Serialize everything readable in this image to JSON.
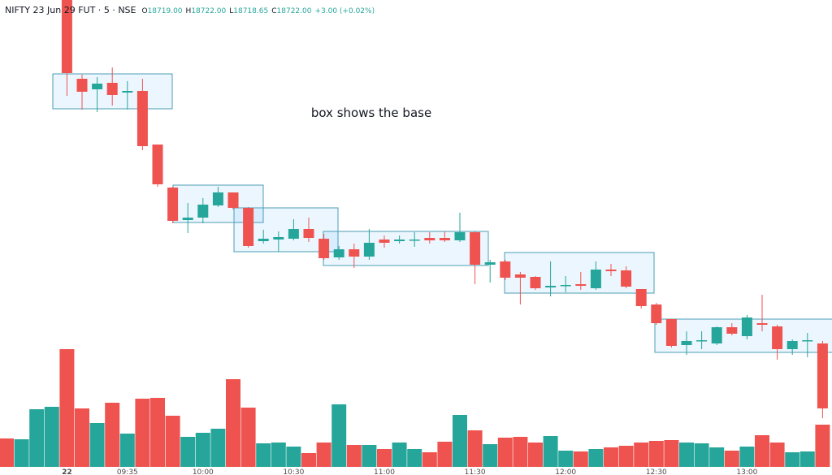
{
  "header": {
    "symbol": "NIFTY 23 Jun 29 FUT",
    "interval": "5",
    "exchange": "NSE",
    "o_label": "O",
    "o_value": "18719.00",
    "h_label": "H",
    "h_value": "18722.00",
    "l_label": "L",
    "l_value": "18718.65",
    "c_label": "C",
    "c_value": "18722.00",
    "change": "+3.00 (+0.02%)"
  },
  "chart_data": {
    "type": "candlestick",
    "annotation": "box shows the base",
    "categories": [
      null,
      null,
      null,
      null,
      "22",
      null,
      null,
      null,
      "09:35",
      null,
      null,
      null,
      null,
      "10:00",
      null,
      null,
      null,
      null,
      null,
      "10:30",
      null,
      null,
      null,
      null,
      null,
      "11:00",
      null,
      null,
      null,
      null,
      null,
      "11:30",
      null,
      null,
      null,
      null,
      null,
      "12:00",
      null,
      null,
      null,
      null,
      null,
      "12:30",
      null,
      null,
      null,
      null,
      null,
      "13:00",
      null,
      null,
      null,
      null,
      null
    ],
    "open": [
      null,
      null,
      null,
      null,
      18850,
      18825.75,
      18822.5,
      18824.5,
      18821.5,
      18822,
      18805.5,
      18792.25,
      18782.25,
      18783,
      18786.75,
      18790.75,
      18786,
      18775.75,
      18776.25,
      18776.5,
      18779.5,
      18776.5,
      18770.75,
      18773.25,
      18771,
      18776.25,
      18775.75,
      18776,
      18776.75,
      18776.75,
      18776,
      18778.5,
      18768.5,
      18769.5,
      18765.5,
      18764.75,
      18761.5,
      18762,
      18762.5,
      18761.25,
      18767,
      18766.75,
      18761,
      18756.25,
      18751.75,
      18743.75,
      18745,
      18744.25,
      18749.25,
      18746.5,
      18750.5,
      18749.5,
      18742.5,
      18745,
      18744.25
    ],
    "high": [
      null,
      null,
      null,
      null,
      18850,
      18827,
      18826.25,
      18829.25,
      18825,
      18825.75,
      18805.5,
      18792.5,
      18787.5,
      18789,
      18792.5,
      18790.75,
      18786.25,
      18779.25,
      18778.75,
      18782.5,
      18783,
      18778,
      18774.25,
      18775,
      18779.5,
      18777.5,
      18777.5,
      18778.5,
      18778.5,
      18778.75,
      18784.5,
      18778.75,
      18770,
      18770,
      18766.25,
      18765,
      18769.5,
      18765,
      18766.25,
      18769.5,
      18768.75,
      18768,
      18761,
      18756.75,
      18751.75,
      18748,
      18748,
      18749.5,
      18750.5,
      18753,
      18759.25,
      18750,
      18745.5,
      18747.5,
      18745
    ],
    "low": [
      null,
      null,
      null,
      null,
      18820.5,
      18816.25,
      18815.5,
      18817.5,
      18816.25,
      18803.75,
      18792.5,
      18781.25,
      18778.25,
      18781.25,
      18786.25,
      18785.5,
      18773.75,
      18775,
      18772.5,
      18776,
      18775.5,
      18770,
      18770,
      18767.5,
      18770,
      18773.75,
      18775,
      18774,
      18775,
      18775.5,
      18775.5,
      18762.5,
      18763,
      18763.75,
      18756.25,
      18760.75,
      18758.75,
      18760,
      18760.75,
      18760.75,
      18765,
      18761.25,
      18755,
      18750,
      18743,
      18740.75,
      18742.5,
      18743.75,
      18746.75,
      18745.5,
      18748,
      18739.25,
      18740.75,
      18740,
      18721.25
    ],
    "close": [
      null,
      null,
      null,
      null,
      18827.5,
      18821.75,
      18824.25,
      18820.75,
      18822,
      18805,
      18793.25,
      18782,
      18783,
      18787,
      18790.75,
      18786,
      18774.25,
      18776.5,
      18777,
      18779.5,
      18776.75,
      18770.5,
      18773.25,
      18771,
      18775.25,
      18775.25,
      18776.25,
      18776.25,
      18776,
      18776,
      18778.5,
      18768.5,
      18769.25,
      18764.5,
      18764.5,
      18761.25,
      18762,
      18762.25,
      18762,
      18767,
      18766.5,
      18761.75,
      18755.75,
      18750.5,
      18743.5,
      18745,
      18745.25,
      18749.25,
      18747.25,
      18752.25,
      18750,
      18742.5,
      18745,
      18745.25,
      18724.25
    ],
    "volume": [
      35,
      34,
      71,
      74,
      145,
      72,
      54,
      79,
      41,
      84,
      85,
      63,
      37,
      42,
      47,
      108,
      73,
      29,
      30,
      25,
      17,
      30,
      77,
      27,
      27,
      22,
      30,
      22,
      18,
      31,
      64,
      45,
      28,
      36,
      37,
      30,
      38,
      20,
      19,
      22,
      24,
      26,
      30,
      32,
      33,
      30,
      29,
      24,
      20,
      25,
      39,
      30,
      18,
      19,
      52
    ],
    "volume_colors": [
      "#ef5350",
      "#26a69a",
      "#26a69a",
      "#26a69a",
      "#ef5350",
      "#ef5350",
      "#26a69a",
      "#ef5350",
      "#26a69a",
      "#ef5350",
      "#ef5350",
      "#ef5350",
      "#26a69a",
      "#26a69a",
      "#26a69a",
      "#ef5350",
      "#ef5350",
      "#26a69a",
      "#26a69a",
      "#26a69a",
      "#ef5350",
      "#ef5350",
      "#26a69a",
      "#ef5350",
      "#26a69a",
      "#ef5350",
      "#26a69a",
      "#26a69a",
      "#ef5350",
      "#ef5350",
      "#26a69a",
      "#ef5350",
      "#26a69a",
      "#ef5350",
      "#ef5350",
      "#ef5350",
      "#26a69a",
      "#26a69a",
      "#ef5350",
      "#26a69a",
      "#ef5350",
      "#ef5350",
      "#ef5350",
      "#ef5350",
      "#ef5350",
      "#26a69a",
      "#26a69a",
      "#26a69a",
      "#ef5350",
      "#26a69a",
      "#ef5350",
      "#ef5350",
      "#26a69a",
      "#26a69a",
      "#ef5350"
    ],
    "up_color": "#26a69a",
    "down_color": "#ef5350",
    "ylim": [
      18703.75,
      18850
    ],
    "volume_ylim": [
      0,
      300
    ]
  }
}
